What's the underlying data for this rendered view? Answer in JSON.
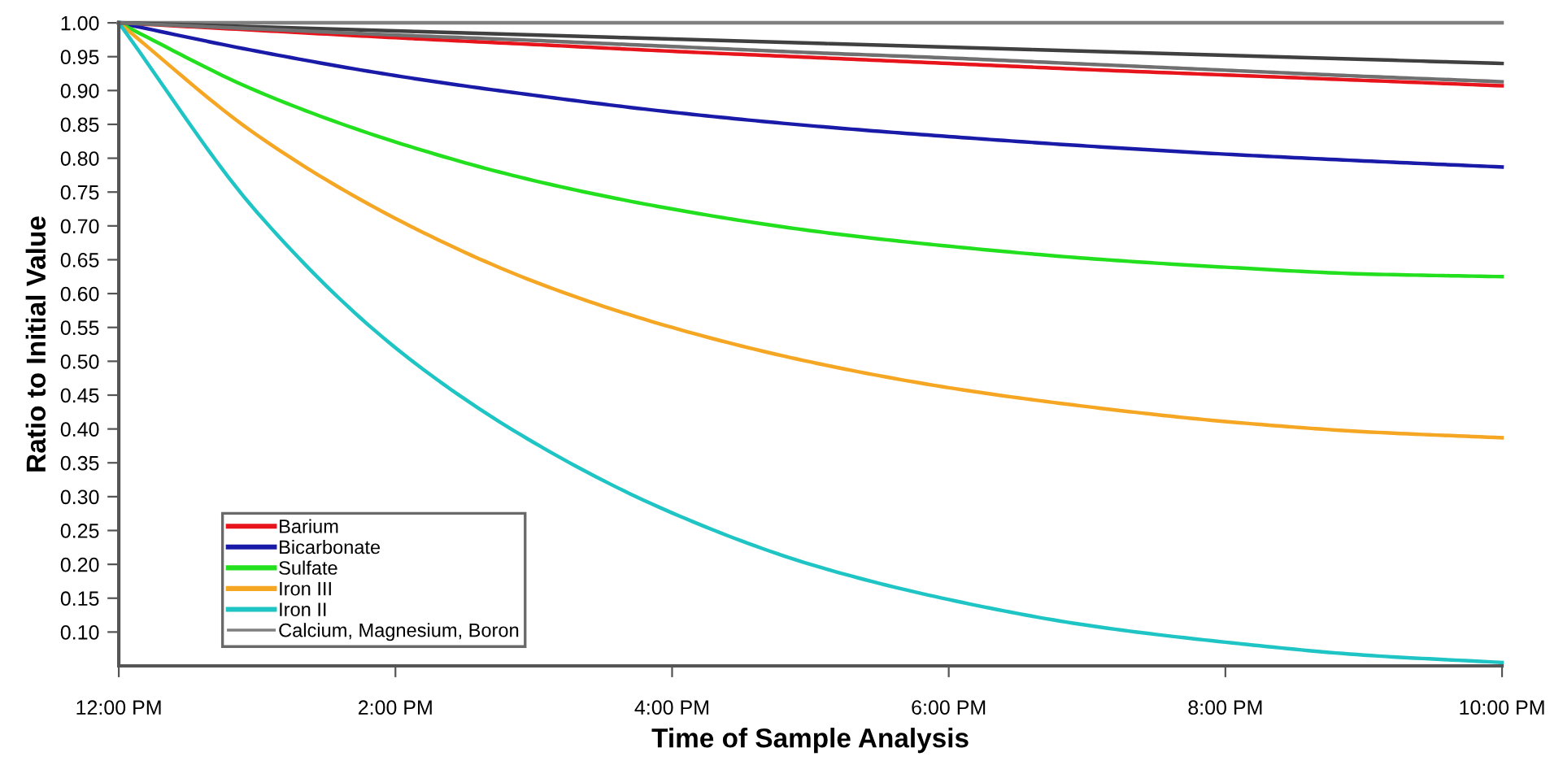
{
  "chart_data": {
    "type": "line",
    "xlabel": "Time of Sample Analysis",
    "ylabel": "Ratio to Initial Value",
    "x": [
      12,
      13,
      14,
      15,
      16,
      17,
      18,
      19,
      20,
      21,
      22
    ],
    "xlim": [
      12,
      22
    ],
    "xticks": [
      {
        "value": 12,
        "label": "12:00 PM"
      },
      {
        "value": 14,
        "label": "2:00 PM"
      },
      {
        "value": 16,
        "label": "4:00 PM"
      },
      {
        "value": 18,
        "label": "6:00 PM"
      },
      {
        "value": 20,
        "label": "8:00 PM"
      },
      {
        "value": 22,
        "label": "10:00 PM"
      }
    ],
    "ylim": [
      0.05,
      1.0
    ],
    "yticks": [
      {
        "value": 0.1,
        "label": "0.10"
      },
      {
        "value": 0.15,
        "label": "0.15"
      },
      {
        "value": 0.2,
        "label": "0.20"
      },
      {
        "value": 0.25,
        "label": "0.25"
      },
      {
        "value": 0.3,
        "label": "0.30"
      },
      {
        "value": 0.35,
        "label": "0.35"
      },
      {
        "value": 0.4,
        "label": "0.40"
      },
      {
        "value": 0.45,
        "label": "0.45"
      },
      {
        "value": 0.5,
        "label": "0.50"
      },
      {
        "value": 0.55,
        "label": "0.55"
      },
      {
        "value": 0.6,
        "label": "0.60"
      },
      {
        "value": 0.65,
        "label": "0.65"
      },
      {
        "value": 0.7,
        "label": "0.70"
      },
      {
        "value": 0.75,
        "label": "0.75"
      },
      {
        "value": 0.8,
        "label": "0.80"
      },
      {
        "value": 0.85,
        "label": "0.85"
      },
      {
        "value": 0.9,
        "label": "0.90"
      },
      {
        "value": 0.95,
        "label": "0.95"
      },
      {
        "value": 1.0,
        "label": "1.00"
      }
    ],
    "grid": false,
    "legend": "bottom left",
    "marker": "none",
    "line_style": "solid",
    "series": [
      {
        "name": "Barium",
        "color": "#e8141c",
        "values": [
          1.0,
          0.989,
          0.978,
          0.968,
          0.958,
          0.949,
          0.94,
          0.931,
          0.923,
          0.915,
          0.907
        ]
      },
      {
        "name": "Bicarbonate",
        "color": "#1a1aa8",
        "values": [
          1.0,
          0.958,
          0.922,
          0.893,
          0.868,
          0.848,
          0.832,
          0.818,
          0.806,
          0.796,
          0.787
        ]
      },
      {
        "name": "Sulfate",
        "color": "#22e01e",
        "values": [
          1.0,
          0.899,
          0.824,
          0.767,
          0.725,
          0.693,
          0.67,
          0.652,
          0.639,
          0.629,
          0.625
        ]
      },
      {
        "name": "Iron III",
        "color": "#f5a623",
        "values": [
          1.0,
          0.834,
          0.711,
          0.618,
          0.55,
          0.499,
          0.461,
          0.433,
          0.411,
          0.396,
          0.387
        ]
      },
      {
        "name": "Iron II",
        "color": "#1fc4c4",
        "values": [
          1.0,
          0.72,
          0.52,
          0.38,
          0.276,
          0.2,
          0.148,
          0.11,
          0.085,
          0.066,
          0.055
        ]
      },
      {
        "name": "Calcium, Magnesium, Boron",
        "color": "#808080",
        "values": [
          1.0,
          1.0,
          1.0,
          1.0,
          1.0,
          1.0,
          1.0,
          1.0,
          1.0,
          1.0,
          1.0
        ]
      },
      {
        "color": "#404040",
        "values": [
          1.0,
          0.994,
          0.988,
          0.982,
          0.976,
          0.97,
          0.964,
          0.958,
          0.952,
          0.946,
          0.94
        ]
      },
      {
        "color": "#707070",
        "values": [
          1.0,
          0.991,
          0.982,
          0.974,
          0.965,
          0.956,
          0.948,
          0.939,
          0.93,
          0.921,
          0.913
        ]
      }
    ]
  }
}
